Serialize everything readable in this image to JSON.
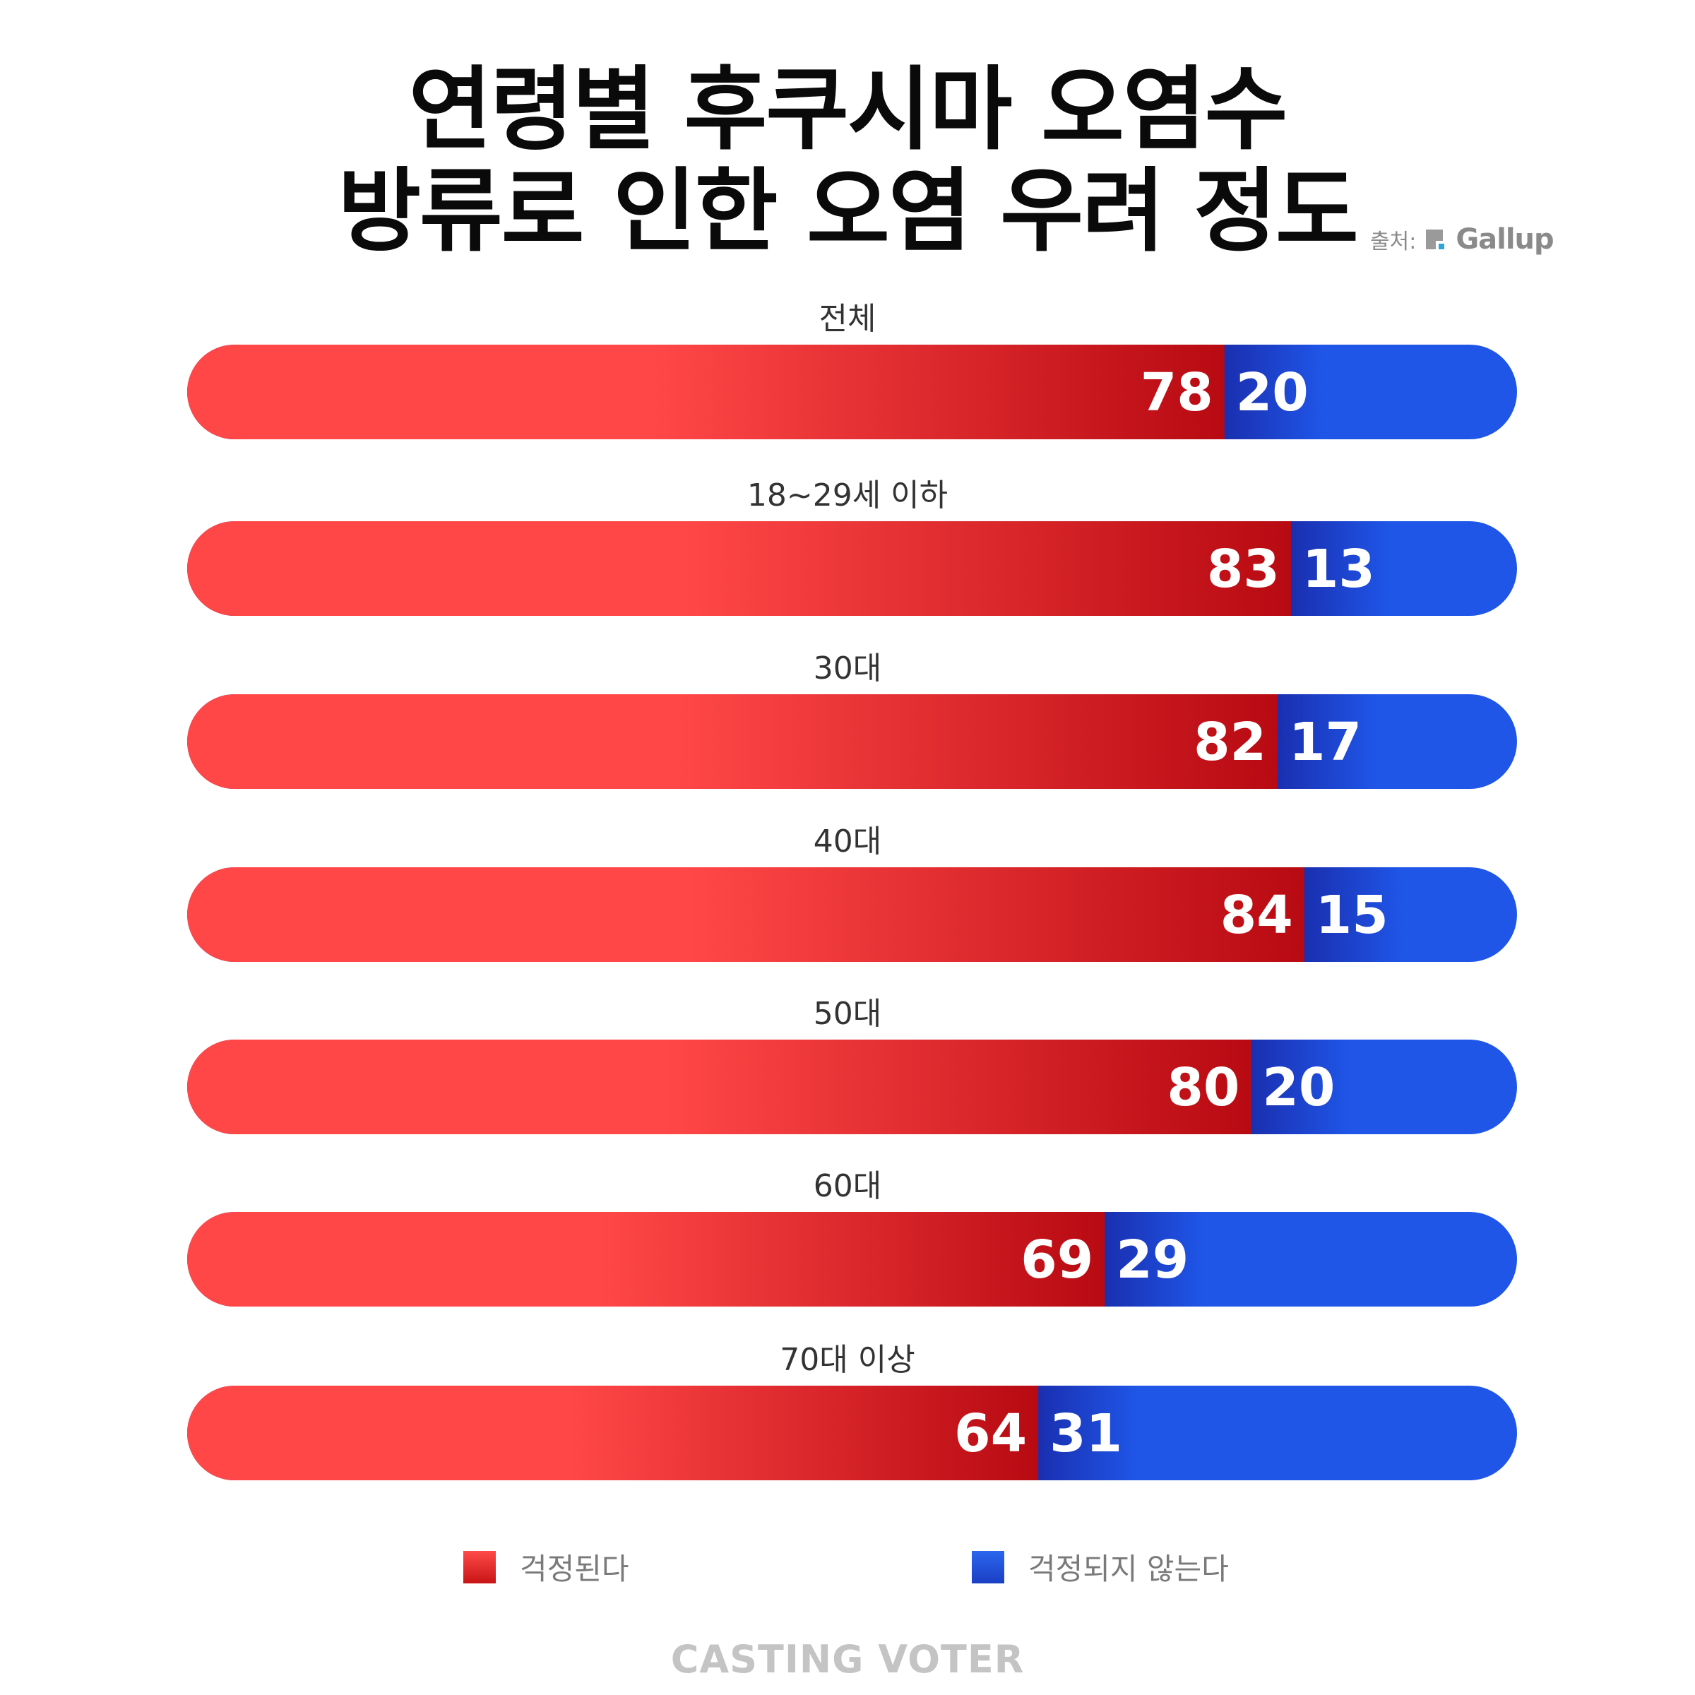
{
  "header": {
    "title_line1": "연령별 후쿠시마 오염수",
    "title_line2": "방류로 인한 오염 우려 정도",
    "source_label": "출처:",
    "source_name": "Gallup"
  },
  "colors": {
    "concerned": "#ff4747",
    "concerned_dark": "#b80a12",
    "not_concerned": "#1f56e8",
    "not_concerned_dark": "#1a2fb0"
  },
  "chart_data": {
    "type": "bar",
    "orientation": "horizontal",
    "stacked": true,
    "categories": [
      "전체",
      "18~29세 이하",
      "30대",
      "40대",
      "50대",
      "60대",
      "70대 이상"
    ],
    "series": [
      {
        "name": "걱정된다",
        "values": [
          78,
          83,
          82,
          84,
          80,
          69,
          64
        ]
      },
      {
        "name": "걱정되지 않는다",
        "values": [
          20,
          13,
          17,
          15,
          20,
          29,
          31
        ]
      }
    ],
    "xlim": [
      0,
      100
    ],
    "grid": false,
    "legend_position": "bottom"
  },
  "legend": {
    "items": [
      "걱정된다",
      "걱정되지 않는다"
    ]
  },
  "footer": {
    "brand": "CASTING VOTER"
  }
}
